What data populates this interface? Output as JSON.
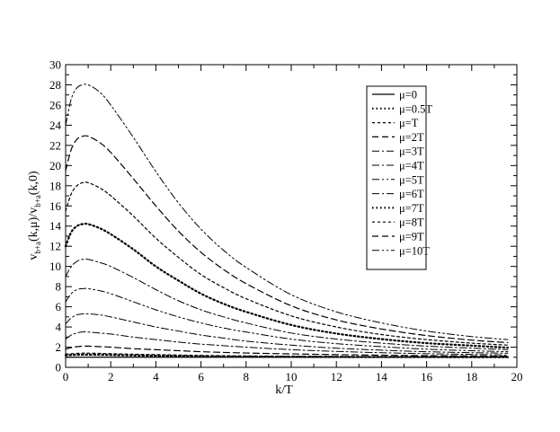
{
  "chart_data": {
    "type": "line",
    "xlabel": "k/T",
    "ylabel": "v_{b+a}(k,μ)/v_{b+a}(k,0)",
    "ylabel_parts": {
      "v1": "v",
      "sub1": "b+a",
      "mid": "(k,μ)/v",
      "sub2": "b+a",
      "end": "(k,0)"
    },
    "xlim": [
      0,
      20
    ],
    "ylim": [
      0,
      30
    ],
    "xticks": [
      0,
      2,
      4,
      6,
      8,
      10,
      12,
      14,
      16,
      18,
      20
    ],
    "yticks": [
      0,
      2,
      4,
      6,
      8,
      10,
      12,
      14,
      16,
      18,
      20,
      22,
      24,
      26,
      28,
      30
    ],
    "grid": false,
    "legend_position": "top-right",
    "x": [
      0,
      0.25,
      0.5,
      0.75,
      1,
      1.5,
      2,
      3,
      4,
      5,
      6,
      7,
      8,
      10,
      12,
      14,
      16,
      18,
      19.6
    ],
    "series": [
      {
        "name": "μ=0",
        "dash": "",
        "width": 1.3,
        "values": [
          1,
          1,
          1,
          1,
          1,
          1,
          1,
          1,
          1,
          1,
          1,
          1,
          1,
          1,
          1,
          1,
          1,
          1,
          1
        ]
      },
      {
        "name": "μ=0.5T",
        "dash": "1.5 3",
        "width": 2.2,
        "values": [
          1.2,
          1.22,
          1.24,
          1.25,
          1.25,
          1.24,
          1.22,
          1.18,
          1.15,
          1.12,
          1.09,
          1.07,
          1.06,
          1.04,
          1.03,
          1.02,
          1.02,
          1.01,
          1.01
        ]
      },
      {
        "name": "μ=T",
        "dash": "3 3",
        "width": 1.2,
        "values": [
          1.3,
          1.35,
          1.38,
          1.4,
          1.4,
          1.38,
          1.35,
          1.3,
          1.26,
          1.22,
          1.18,
          1.15,
          1.13,
          1.1,
          1.08,
          1.06,
          1.05,
          1.04,
          1.04
        ]
      },
      {
        "name": "μ=2T",
        "dash": "7 4",
        "width": 1.2,
        "values": [
          1.8,
          1.95,
          2.05,
          2.1,
          2.1,
          2.05,
          2.0,
          1.85,
          1.75,
          1.65,
          1.55,
          1.48,
          1.42,
          1.33,
          1.26,
          1.2,
          1.16,
          1.13,
          1.1
        ]
      },
      {
        "name": "μ=3T",
        "dash": "8 3 2 3",
        "width": 1.0,
        "values": [
          2.8,
          3.2,
          3.4,
          3.5,
          3.5,
          3.4,
          3.3,
          3.0,
          2.75,
          2.5,
          2.3,
          2.15,
          2.0,
          1.75,
          1.58,
          1.45,
          1.35,
          1.28,
          1.22
        ]
      },
      {
        "name": "μ=4T",
        "dash": "8 3 2 3",
        "width": 1.0,
        "values": [
          4.3,
          4.9,
          5.2,
          5.3,
          5.3,
          5.2,
          5.0,
          4.5,
          4.0,
          3.6,
          3.2,
          2.9,
          2.6,
          2.2,
          1.9,
          1.7,
          1.55,
          1.45,
          1.4
        ]
      },
      {
        "name": "μ=5T",
        "dash": "8 3 2 3 2 3",
        "width": 1.0,
        "values": [
          6.5,
          7.3,
          7.7,
          7.8,
          7.8,
          7.6,
          7.3,
          6.5,
          5.7,
          5.0,
          4.4,
          3.9,
          3.5,
          2.8,
          2.35,
          2.05,
          1.8,
          1.65,
          1.55
        ]
      },
      {
        "name": "μ=6T",
        "dash": "8 3 2 3",
        "width": 1.0,
        "values": [
          9.0,
          10.0,
          10.5,
          10.7,
          10.7,
          10.4,
          10.0,
          8.9,
          7.7,
          6.6,
          5.7,
          5.0,
          4.4,
          3.4,
          2.8,
          2.4,
          2.1,
          1.9,
          1.75
        ]
      },
      {
        "name": "μ=7T",
        "dash": "1.5 3",
        "width": 2.2,
        "values": [
          12.0,
          13.4,
          14.0,
          14.2,
          14.2,
          13.8,
          13.2,
          11.7,
          10.0,
          8.6,
          7.3,
          6.3,
          5.5,
          4.2,
          3.35,
          2.8,
          2.4,
          2.15,
          1.95
        ]
      },
      {
        "name": "μ=8T",
        "dash": "3 3",
        "width": 1.2,
        "values": [
          15.5,
          17.2,
          18.0,
          18.3,
          18.3,
          17.8,
          17.0,
          15.0,
          12.8,
          10.9,
          9.2,
          7.9,
          6.8,
          5.1,
          4.0,
          3.25,
          2.75,
          2.4,
          2.2
        ]
      },
      {
        "name": "μ=9T",
        "dash": "7 4",
        "width": 1.2,
        "values": [
          19.5,
          21.6,
          22.6,
          22.9,
          22.9,
          22.3,
          21.3,
          18.7,
          16.0,
          13.5,
          11.4,
          9.7,
          8.3,
          6.1,
          4.7,
          3.8,
          3.15,
          2.7,
          2.45
        ]
      },
      {
        "name": "μ=10T",
        "dash": "8 3 2 3 2 3",
        "width": 1.0,
        "values": [
          24.0,
          26.6,
          27.7,
          28.0,
          28.0,
          27.3,
          26.0,
          22.8,
          19.4,
          16.3,
          13.7,
          11.6,
          9.9,
          7.2,
          5.5,
          4.4,
          3.6,
          3.05,
          2.75
        ]
      }
    ]
  }
}
